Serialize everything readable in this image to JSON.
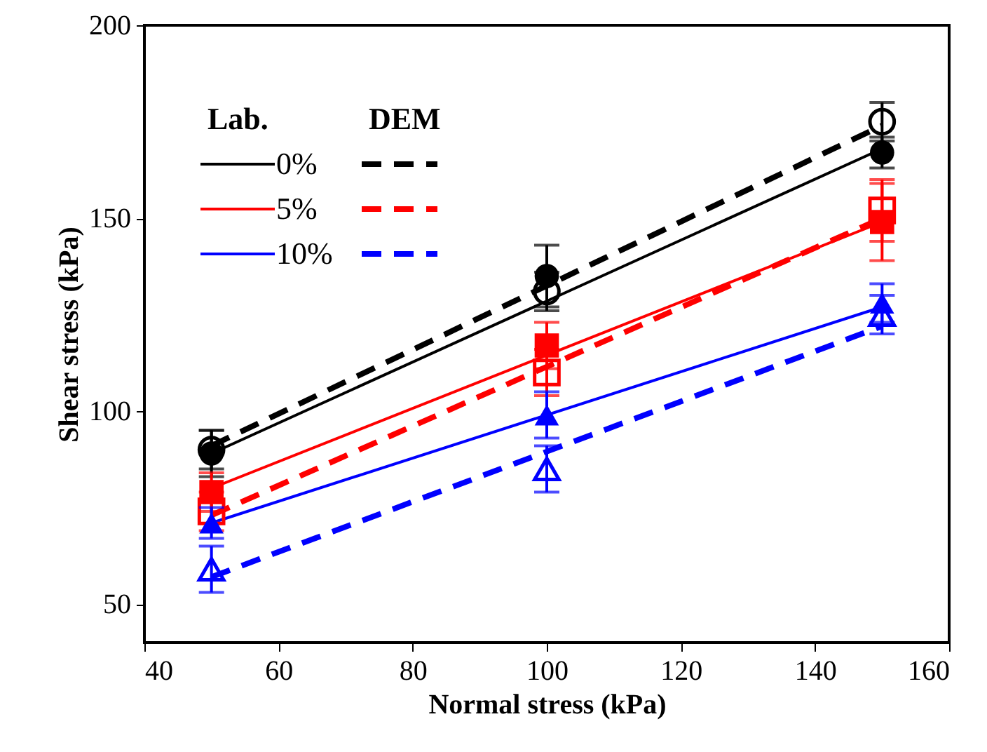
{
  "chart_data": {
    "type": "scatter",
    "xlabel": "Normal stress  (kPa)",
    "ylabel": "Shear stress (kPa)",
    "xlim": [
      40,
      160
    ],
    "xticks": [
      40,
      60,
      80,
      100,
      120,
      140,
      160
    ],
    "ylim": [
      40,
      200
    ],
    "yticks": [
      50,
      100,
      150,
      200
    ],
    "grid": false,
    "legend": "top left",
    "annotations": [
      "Lab.",
      "DEM"
    ],
    "series": [
      {
        "name": "0%",
        "type": "line",
        "color": "#000000",
        "line_style": "solid",
        "x": [
          50,
          150
        ],
        "values": [
          89,
          168
        ]
      },
      {
        "name": "5%",
        "type": "line",
        "color": "#ff0000",
        "line_style": "solid",
        "x": [
          50,
          150
        ],
        "values": [
          80,
          149
        ]
      },
      {
        "name": "10%",
        "type": "line",
        "color": "#0000ff",
        "line_style": "solid",
        "x": [
          50,
          150
        ],
        "values": [
          71,
          127
        ]
      },
      {
        "type": "line",
        "color": "#000000",
        "line_style": "dashed",
        "x": [
          50,
          150
        ],
        "values": [
          91,
          174
        ]
      },
      {
        "type": "line",
        "color": "#ff0000",
        "line_style": "dashed",
        "x": [
          50,
          150
        ],
        "values": [
          73,
          150
        ]
      },
      {
        "type": "line",
        "color": "#0000ff",
        "line_style": "dashed",
        "x": [
          50,
          150
        ],
        "values": [
          57,
          122
        ]
      },
      {
        "color": "#000000",
        "marker": "circle",
        "x": [
          50,
          100,
          150
        ],
        "values": [
          89,
          135,
          167
        ],
        "errors": [
          6,
          8,
          4
        ]
      },
      {
        "color": "#ff0000",
        "marker": "square",
        "x": [
          50,
          100,
          150
        ],
        "values": [
          79,
          117,
          149
        ],
        "errors": [
          5,
          6,
          10
        ]
      },
      {
        "color": "#0000ff",
        "marker": "triangle",
        "x": [
          50,
          100,
          150
        ],
        "values": [
          71,
          99,
          128
        ],
        "errors": [
          4,
          6,
          5
        ]
      },
      {
        "color": "#000000",
        "marker": "circle",
        "x": [
          50,
          100,
          150
        ],
        "values": [
          90,
          131,
          175
        ],
        "errors": [
          5,
          5,
          5
        ]
      },
      {
        "color": "#ff0000",
        "marker": "square",
        "x": [
          50,
          100,
          150
        ],
        "values": [
          74,
          110,
          152
        ],
        "errors": [
          5,
          6,
          8
        ]
      },
      {
        "color": "#0000ff",
        "marker": "triangle",
        "x": [
          50,
          100,
          150
        ],
        "values": [
          59,
          85,
          125
        ],
        "errors": [
          6,
          6,
          5
        ]
      }
    ]
  }
}
